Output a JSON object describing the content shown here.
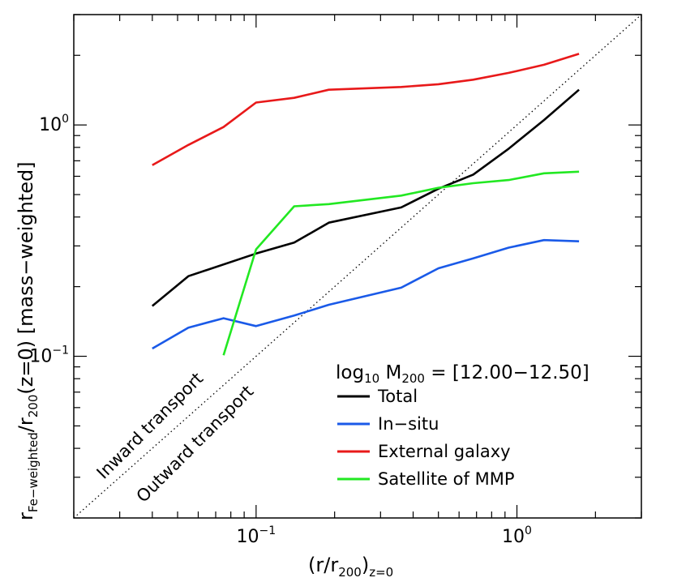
{
  "chart_data": {
    "type": "line",
    "title": "",
    "xlabel": {
      "main": "(r/r",
      "sub1": "200",
      "close": ")",
      "sub2": "z=0"
    },
    "ylabel": {
      "r": "r",
      "sub1": "Fe−weighted",
      "slash": "/r",
      "sub2": "200",
      "tail": "(z=0)  [mass−weighted]"
    },
    "x_scale": "log",
    "y_scale": "log",
    "xlim": [
      0.02,
      3.0
    ],
    "ylim": [
      0.02,
      3.0
    ],
    "grid": false,
    "legend_position": "bottom-right",
    "legend_title": {
      "log": "log",
      "base": "10",
      "m": " M",
      "msub": "200",
      "range": " = [12.00−12.50]"
    },
    "x_ticks": [
      {
        "value": 0.1,
        "base": "10",
        "exp": "−1"
      },
      {
        "value": 1.0,
        "base": "10",
        "exp": "0"
      }
    ],
    "y_ticks": [
      {
        "value": 0.1,
        "base": "10",
        "exp": "−1"
      },
      {
        "value": 1.0,
        "base": "10",
        "exp": "0"
      }
    ],
    "annotations": {
      "inward": "Inward transport",
      "outward": "Outward transport"
    },
    "series": [
      {
        "name": "Total",
        "color": "#000000",
        "points": [
          [
            0.04,
            0.165
          ],
          [
            0.055,
            0.222
          ],
          [
            0.1,
            0.278
          ],
          [
            0.14,
            0.31
          ],
          [
            0.19,
            0.378
          ],
          [
            0.36,
            0.44
          ],
          [
            0.5,
            0.53
          ],
          [
            0.68,
            0.61
          ],
          [
            0.93,
            0.79
          ],
          [
            1.27,
            1.05
          ],
          [
            1.73,
            1.42
          ]
        ]
      },
      {
        "name": "In−situ",
        "color": "#1a5ae8",
        "points": [
          [
            0.04,
            0.108
          ],
          [
            0.055,
            0.133
          ],
          [
            0.075,
            0.146
          ],
          [
            0.1,
            0.135
          ],
          [
            0.14,
            0.15
          ],
          [
            0.19,
            0.167
          ],
          [
            0.36,
            0.198
          ],
          [
            0.5,
            0.24
          ],
          [
            0.68,
            0.265
          ],
          [
            0.93,
            0.295
          ],
          [
            1.27,
            0.318
          ],
          [
            1.73,
            0.314
          ]
        ]
      },
      {
        "name": "External galaxy",
        "color": "#e8191a",
        "points": [
          [
            0.04,
            0.67
          ],
          [
            0.055,
            0.82
          ],
          [
            0.075,
            0.98
          ],
          [
            0.1,
            1.25
          ],
          [
            0.14,
            1.31
          ],
          [
            0.19,
            1.42
          ],
          [
            0.36,
            1.46
          ],
          [
            0.5,
            1.5
          ],
          [
            0.68,
            1.57
          ],
          [
            0.93,
            1.68
          ],
          [
            1.27,
            1.82
          ],
          [
            1.73,
            2.03
          ]
        ]
      },
      {
        "name": "Satellite of MMP",
        "color": "#22e822",
        "points": [
          [
            0.075,
            0.101
          ],
          [
            0.1,
            0.29
          ],
          [
            0.14,
            0.445
          ],
          [
            0.19,
            0.455
          ],
          [
            0.36,
            0.495
          ],
          [
            0.5,
            0.535
          ],
          [
            0.68,
            0.56
          ],
          [
            0.93,
            0.578
          ],
          [
            1.27,
            0.618
          ],
          [
            1.73,
            0.628
          ]
        ]
      }
    ]
  }
}
